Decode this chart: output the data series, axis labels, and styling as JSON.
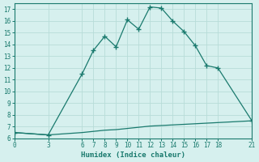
{
  "xlabel": "Humidex (Indice chaleur)",
  "upper_x": [
    0,
    3,
    6,
    7,
    8,
    9,
    10,
    11,
    12,
    13,
    14,
    15,
    16,
    17,
    18,
    21
  ],
  "upper_y": [
    6.5,
    6.3,
    11.5,
    13.5,
    14.7,
    13.8,
    16.1,
    15.3,
    17.2,
    17.1,
    16.0,
    15.1,
    13.9,
    12.2,
    12.0,
    7.5
  ],
  "lower_x": [
    0,
    3,
    6,
    7,
    8,
    9,
    10,
    11,
    12,
    13,
    14,
    15,
    16,
    17,
    18,
    21
  ],
  "lower_y": [
    6.5,
    6.3,
    6.5,
    6.6,
    6.7,
    6.75,
    6.85,
    6.95,
    7.05,
    7.1,
    7.15,
    7.2,
    7.25,
    7.3,
    7.35,
    7.5
  ],
  "ylim": [
    6,
    17.5
  ],
  "xlim": [
    0,
    21
  ],
  "yticks": [
    6,
    7,
    8,
    9,
    10,
    11,
    12,
    13,
    14,
    15,
    16,
    17
  ],
  "xticks": [
    0,
    3,
    6,
    7,
    8,
    9,
    10,
    11,
    12,
    13,
    14,
    15,
    16,
    17,
    18,
    21
  ],
  "line_color": "#1a7a6e",
  "bg_color": "#d6f0ee",
  "grid_color": "#b8dcd8",
  "marker": "+",
  "marker_size": 4,
  "linewidth": 0.9
}
